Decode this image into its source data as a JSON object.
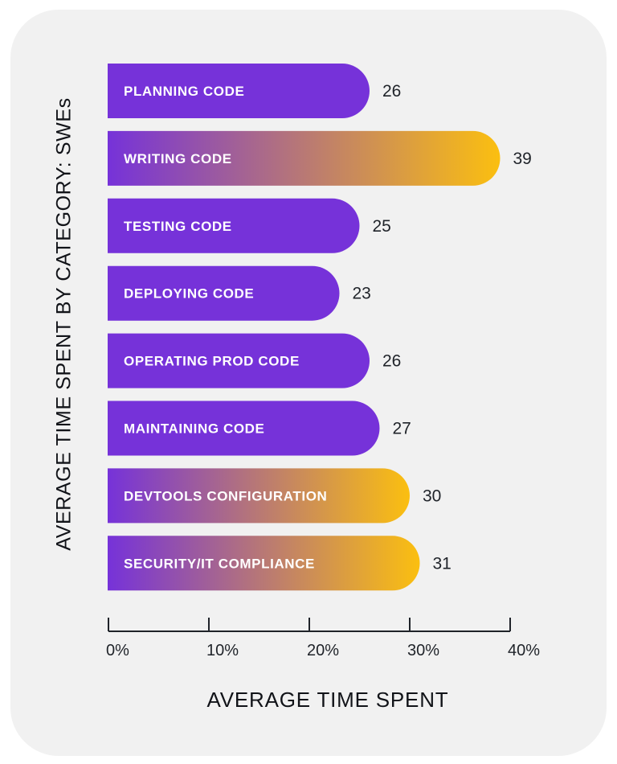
{
  "chart_data": {
    "type": "bar",
    "orientation": "horizontal",
    "title": "",
    "xlabel": "AVERAGE TIME SPENT",
    "ylabel": "AVERAGE TIME SPENT BY CATEGORY: SWEs",
    "xlim": [
      0,
      40
    ],
    "x_ticks": [
      0,
      10,
      20,
      30,
      40
    ],
    "x_tick_labels": [
      "0%",
      "10%",
      "20%",
      "30%",
      "40%"
    ],
    "grid": false,
    "legend": null,
    "categories": [
      "PLANNING CODE",
      "WRITING CODE",
      "TESTING CODE",
      "DEPLOYING CODE",
      "OPERATING PROD CODE",
      "MAINTAINING CODE",
      "DEVTOOLS CONFIGURATION",
      "SECURITY/IT COMPLIANCE"
    ],
    "values": [
      26,
      39,
      25,
      23,
      26,
      27,
      30,
      31
    ],
    "value_labels": [
      "26",
      "39",
      "25",
      "23",
      "26",
      "27",
      "30",
      "31"
    ],
    "highlighted": [
      false,
      true,
      false,
      false,
      false,
      false,
      true,
      true
    ]
  },
  "colors": {
    "bar_solid": "#7632d9",
    "gradient_start": "#7632d9",
    "gradient_end": "#fbbf10",
    "card_background": "#f1f1f1",
    "axis": "#1f2329"
  }
}
